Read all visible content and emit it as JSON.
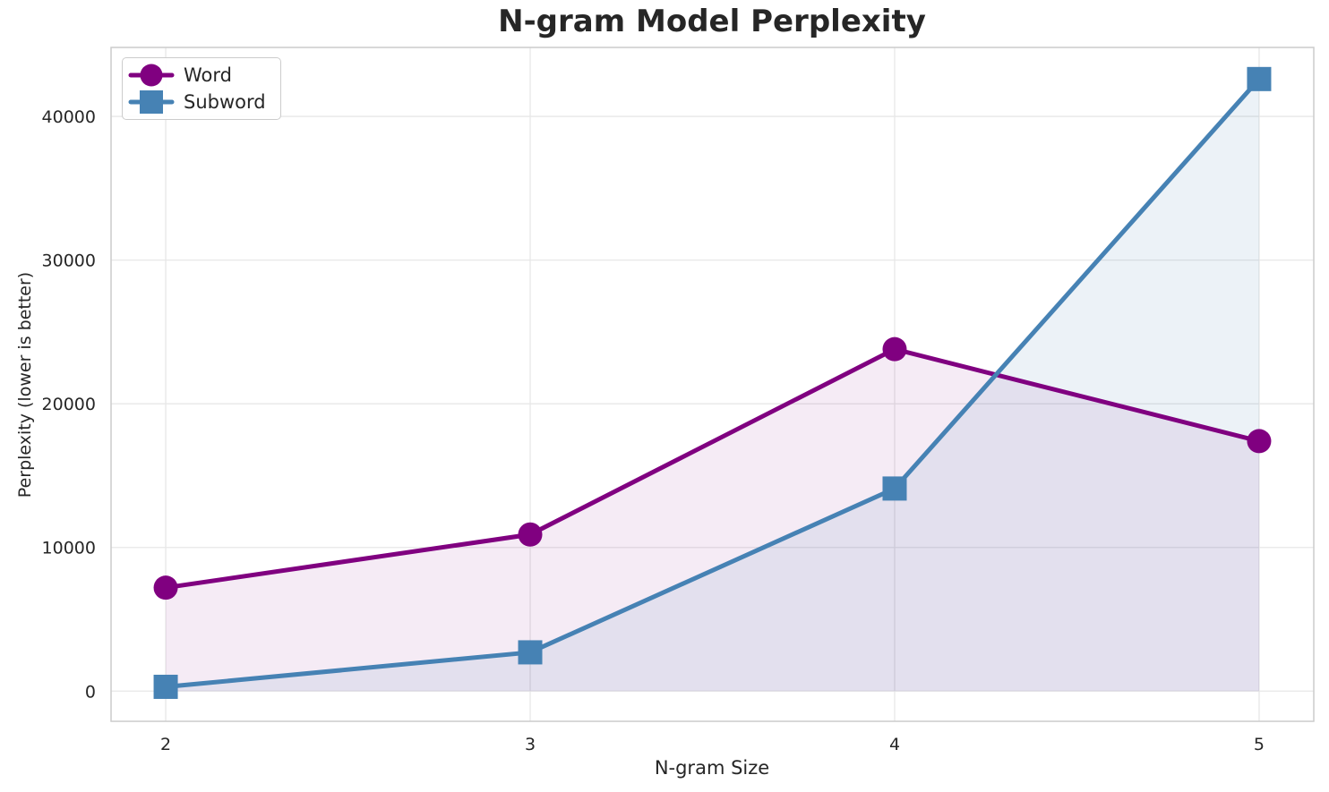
{
  "chart_data": {
    "type": "line",
    "title": "N-gram Model Perplexity",
    "xlabel": "N-gram Size",
    "ylabel": "Perplexity (lower is better)",
    "x": [
      2,
      3,
      4,
      5
    ],
    "xtick_labels": [
      "2",
      "3",
      "4",
      "5"
    ],
    "yticks": [
      0,
      10000,
      20000,
      30000,
      40000
    ],
    "ytick_labels": [
      "0",
      "10000",
      "20000",
      "30000",
      "40000"
    ],
    "xlim": [
      1.85,
      5.15
    ],
    "ylim": [
      -2100,
      44800
    ],
    "grid": true,
    "legend_position": "upper-left",
    "series": [
      {
        "name": "Word",
        "marker": "circle",
        "color": "#800080",
        "fill_opacity": 0.08,
        "area_to_zero": true,
        "values": [
          7200,
          10900,
          23800,
          17400
        ]
      },
      {
        "name": "Subword",
        "marker": "square",
        "color": "#4682b4",
        "fill_opacity": 0.1,
        "area_to_zero": true,
        "values": [
          300,
          2700,
          14100,
          42600
        ]
      }
    ],
    "text_color": "#262626",
    "grid_color": "#e7e7e7",
    "spine_color": "#cccccc",
    "background_color": "#ffffff"
  }
}
